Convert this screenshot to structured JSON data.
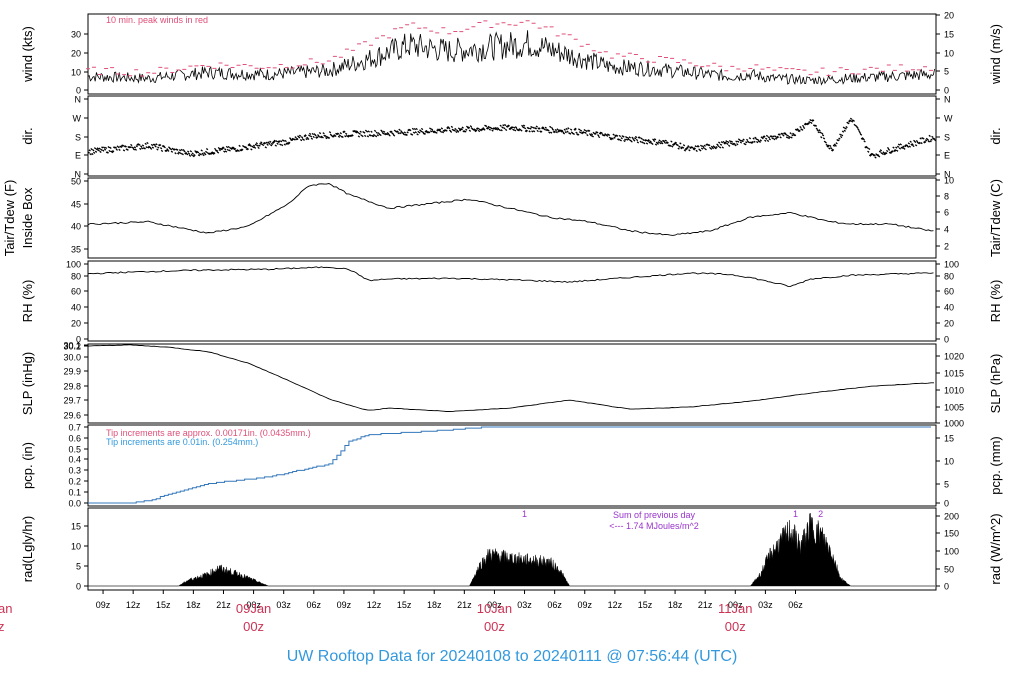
{
  "chart_data": {
    "type": "line",
    "title": "UW Rooftop Data for 20240108  to  20240111 @ 07:56:44  (UTC)",
    "time_ticks": [
      "09z",
      "12z",
      "15z",
      "18z",
      "21z",
      "00z",
      "03z",
      "06z",
      "09z",
      "12z",
      "15z",
      "18z",
      "21z",
      "00z",
      "03z",
      "06z",
      "09z",
      "12z",
      "15z",
      "18z",
      "21z",
      "00z",
      "03z",
      "06z"
    ],
    "day_labels": [
      {
        "date": "09Jan",
        "time": "00z"
      },
      {
        "date": "10Jan",
        "time": "00z"
      },
      {
        "date": "11Jan",
        "time": "00z"
      }
    ],
    "left_edge_fragment": {
      "date": "an",
      "time": "z"
    },
    "panels": [
      {
        "id": "wind",
        "ylabel_left": "wind (kts)",
        "ylabel_right": "wind (m/s)",
        "ylim": [
          0,
          39
        ],
        "left_ticks": [
          "0",
          "10",
          "20",
          "30"
        ],
        "right_ticks": [
          "0",
          "5",
          "10",
          "15",
          "20"
        ],
        "annotations": [
          "10 min. peak winds in red"
        ],
        "series": [
          {
            "name": "wind speed",
            "hours": [
              0,
              6,
              12,
              18,
              24,
              28,
              32,
              36,
              40,
              44,
              48,
              52,
              56,
              60,
              64,
              66,
              68,
              72,
              76,
              80,
              84
            ],
            "values": [
              7,
              6,
              9,
              8,
              10,
              16,
              23,
              20,
              22,
              24,
              18,
              12,
              11,
              9,
              7,
              8,
              6,
              5,
              6,
              7,
              8
            ]
          },
          {
            "name": "10 min. peak winds",
            "hours": [
              0,
              6,
              12,
              18,
              24,
              28,
              32,
              36,
              40,
              44,
              48,
              52,
              56,
              60,
              64,
              66,
              68,
              72,
              76,
              80,
              84
            ],
            "values": [
              10,
              9,
              13,
              12,
              15,
              24,
              33,
              30,
              34,
              35,
              27,
              18,
              16,
              14,
              11,
              12,
              10,
              9,
              10,
              11,
              12
            ]
          }
        ]
      },
      {
        "id": "dir",
        "ylabel_left": "dir.",
        "ylabel_right": "dir.",
        "left_ticks": [
          "N",
          "E",
          "S",
          "W",
          "N"
        ],
        "right_ticks": [
          "N",
          "E",
          "S",
          "W",
          "N"
        ],
        "series": [
          {
            "name": "wind direction",
            "hours": [
              0,
              6,
              10,
              14,
              20,
              22,
              26,
              30,
              36,
              42,
              48,
              54,
              58,
              60,
              64,
              70,
              72,
              74,
              76,
              78,
              80,
              84
            ],
            "values": [
              110,
              140,
              100,
              120,
              160,
              185,
              195,
              200,
              215,
              225,
              210,
              170,
              150,
              120,
              150,
              190,
              260,
              120,
              270,
              90,
              120,
              175
            ]
          }
        ]
      },
      {
        "id": "temp",
        "ylabel_left": "Tair/Tdew (F)",
        "ylabel_left2": "Inside Box",
        "ylabel_right": "Tair/Tdew (C)",
        "ylim": [
          33.8,
          50.5
        ],
        "left_ticks": [
          "35",
          "40",
          "45",
          "50"
        ],
        "right_ticks": [
          "2",
          "4",
          "6",
          "8",
          "10"
        ],
        "series": [
          {
            "name": "Tair inside box",
            "hours": [
              0,
              6,
              12,
              16,
              20,
              22,
              24,
              26,
              30,
              34,
              38,
              42,
              46,
              50,
              54,
              58,
              62,
              66,
              70,
              72,
              74,
              76,
              80,
              84
            ],
            "values": [
              40.5,
              41,
              38.5,
              40,
              45,
              49,
              49.5,
              47,
              44,
              45,
              46,
              44,
              42,
              41,
              39,
              38,
              39,
              42,
              43,
              42,
              41,
              40.5,
              40.5,
              39
            ]
          }
        ]
      },
      {
        "id": "rh",
        "ylabel_left": "RH (%)",
        "ylabel_right": "RH (%)",
        "ylim": [
          0,
          100
        ],
        "left_ticks": [
          "0",
          "20",
          "40",
          "60",
          "80",
          "100"
        ],
        "right_ticks": [
          "0",
          "20",
          "40",
          "60",
          "80",
          "100"
        ],
        "series": [
          {
            "name": "RH",
            "hours": [
              0,
              6,
              12,
              18,
              24,
              26,
              28,
              30,
              36,
              42,
              48,
              54,
              60,
              64,
              66,
              70,
              72,
              76,
              84
            ],
            "values": [
              87,
              90,
              92,
              93,
              96,
              93,
              78,
              80,
              81,
              79,
              76,
              82,
              88,
              86,
              82,
              70,
              80,
              85,
              88
            ]
          }
        ]
      },
      {
        "id": "slp",
        "ylabel_left": "SLP (inHg)",
        "ylabel_right": "SLP (hPa)",
        "ylim": [
          29.55,
          30.23
        ],
        "left_ticks": [
          "29.6",
          "29.7",
          "29.8",
          "29.9",
          "30.0",
          "30.1",
          "30.2"
        ],
        "right_ticks": [
          "1000",
          "1005",
          "1010",
          "1015",
          "1020"
        ],
        "series": [
          {
            "name": "SLP",
            "hours": [
              0,
              4,
              8,
              12,
              16,
              20,
              24,
              27,
              28,
              30,
              36,
              42,
              48,
              54,
              60,
              66,
              72,
              78,
              84
            ],
            "values": [
              30.2,
              30.21,
              30.19,
              30.15,
              30.05,
              29.9,
              29.74,
              29.66,
              29.64,
              29.66,
              29.63,
              29.66,
              29.73,
              29.65,
              29.67,
              29.72,
              29.79,
              29.85,
              29.88
            ]
          }
        ]
      },
      {
        "id": "pcp",
        "ylabel_left": "pcp. (in)",
        "ylabel_right": "pcp. (mm)",
        "ylim": [
          0,
          0.7
        ],
        "left_ticks": [
          "0.0",
          "0.1",
          "0.2",
          "0.3",
          "0.4",
          "0.5",
          "0.6",
          "0.7"
        ],
        "right_ticks": [
          "0",
          "5",
          "10",
          "15"
        ],
        "annotations": [
          "Tip increments are approx. 0.00171in. (0.0435mm.)",
          "Tip increments are 0.01in. (0.254mm.)"
        ],
        "series": [
          {
            "name": "precip",
            "hours": [
              0,
              4,
              6,
              8,
              10,
              12,
              15,
              18,
              21,
              24,
              25,
              26,
              28,
              30,
              34,
              38,
              40,
              84
            ],
            "values": [
              0,
              0,
              0.02,
              0.08,
              0.13,
              0.18,
              0.21,
              0.24,
              0.3,
              0.36,
              0.46,
              0.57,
              0.63,
              0.64,
              0.66,
              0.69,
              0.7,
              0.7
            ]
          }
        ]
      },
      {
        "id": "rad",
        "ylabel_left": "rad(Lgly/hr)",
        "ylabel_right": "rad (W/m^2)",
        "ylim": [
          0,
          19.5
        ],
        "left_ticks": [
          "0",
          "5",
          "10",
          "15"
        ],
        "right_ticks": [
          "0",
          "50",
          "100",
          "150",
          "200"
        ],
        "annotations": [
          "Sum of previous day",
          "<--- 1.74 MJoules/m^2"
        ],
        "markers": [
          {
            "label": "1",
            "hour": 43.5
          },
          {
            "label": "1",
            "hour": 70.5
          },
          {
            "label": "2",
            "hour": 73
          }
        ],
        "series": [
          {
            "name": "radiation",
            "hours": [
              9,
              10,
              12,
              13,
              15,
              17,
              18,
              38,
              39,
              40,
              42,
              44,
              46,
              47,
              48,
              66,
              67,
              68,
              69,
              70,
              71,
              72,
              73,
              74,
              75,
              76
            ],
            "values": [
              0,
              1.5,
              3,
              4.5,
              3,
              1,
              0,
              0,
              5,
              8,
              7,
              6.5,
              6,
              4,
              0,
              0,
              3,
              8,
              11,
              14,
              10,
              15,
              13,
              9,
              2,
              0
            ]
          }
        ]
      }
    ]
  }
}
